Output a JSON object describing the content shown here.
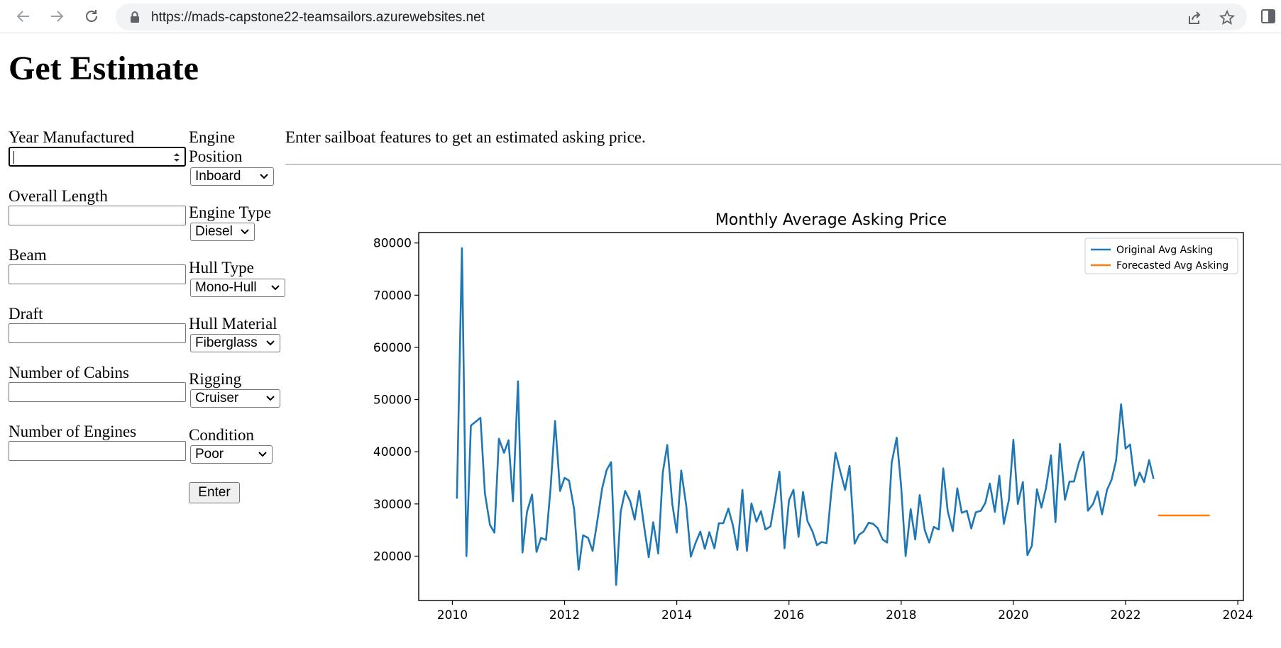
{
  "browser": {
    "url": "https://mads-capstone22-teamsailors.azurewebsites.net",
    "icons": [
      "back-icon",
      "forward-icon",
      "reload-icon",
      "lock-icon",
      "share-icon",
      "star-icon",
      "side-panel-icon"
    ]
  },
  "page": {
    "title": "Get Estimate",
    "intro": "Enter sailboat features to get an estimated asking price.",
    "submit_label": "Enter"
  },
  "form": {
    "year_label": "Year Manufactured",
    "year_value": "",
    "length_label": "Overall Length",
    "length_value": "",
    "beam_label": "Beam",
    "beam_value": "",
    "draft_label": "Draft",
    "draft_value": "",
    "cabins_label": "Number of Cabins",
    "cabins_value": "",
    "engines_label": "Number of Engines",
    "engines_value": "",
    "engine_position_label_1": "Engine",
    "engine_position_label_2": "Position",
    "engine_position_value": "Inboard",
    "engine_type_label": "Engine Type",
    "engine_type_value": "Diesel",
    "hull_type_label": "Hull Type",
    "hull_type_value": "Mono-Hull",
    "hull_material_label": "Hull Material",
    "hull_material_value": "Fiberglass",
    "rigging_label": "Rigging",
    "rigging_value": "Cruiser",
    "condition_label": "Condition",
    "condition_value": "Poor"
  },
  "chart_data": {
    "type": "line",
    "title": "Monthly Average Asking Price",
    "xlabel": "",
    "ylabel": "",
    "xlim": [
      2009.4,
      2024.1
    ],
    "ylim": [
      11500,
      82000
    ],
    "x_ticks": [
      "2010",
      "2012",
      "2014",
      "2016",
      "2018",
      "2020",
      "2022",
      "2024"
    ],
    "y_ticks": [
      "20000",
      "30000",
      "40000",
      "50000",
      "60000",
      "70000",
      "80000"
    ],
    "legend_position": "top-right",
    "grid": false,
    "series": [
      {
        "name": "Original Avg Asking",
        "color": "#1f77b4",
        "x": [
          2010.08,
          2010.17,
          2010.25,
          2010.33,
          2010.5,
          2010.58,
          2010.67,
          2010.75,
          2010.83,
          2010.92,
          2011.0,
          2011.08,
          2011.17,
          2011.25,
          2011.33,
          2011.42,
          2011.5,
          2011.58,
          2011.67,
          2011.75,
          2011.83,
          2011.92,
          2012.0,
          2012.08,
          2012.17,
          2012.25,
          2012.33,
          2012.42,
          2012.5,
          2012.58,
          2012.67,
          2012.75,
          2012.83,
          2012.92,
          2013.0,
          2013.08,
          2013.17,
          2013.25,
          2013.33,
          2013.42,
          2013.5,
          2013.58,
          2013.67,
          2013.75,
          2013.83,
          2013.92,
          2014.0,
          2014.08,
          2014.17,
          2014.25,
          2014.33,
          2014.42,
          2014.5,
          2014.58,
          2014.67,
          2014.75,
          2014.83,
          2014.92,
          2015.0,
          2015.08,
          2015.17,
          2015.25,
          2015.33,
          2015.42,
          2015.5,
          2015.58,
          2015.67,
          2015.75,
          2015.83,
          2015.92,
          2016.0,
          2016.08,
          2016.17,
          2016.25,
          2016.33,
          2016.42,
          2016.5,
          2016.58,
          2016.67,
          2016.75,
          2016.83,
          2016.92,
          2017.0,
          2017.08,
          2017.17,
          2017.25,
          2017.33,
          2017.42,
          2017.5,
          2017.58,
          2017.67,
          2017.75,
          2017.83,
          2017.92,
          2018.0,
          2018.08,
          2018.17,
          2018.25,
          2018.33,
          2018.42,
          2018.5,
          2018.58,
          2018.67,
          2018.75,
          2018.83,
          2018.92,
          2019.0,
          2019.08,
          2019.17,
          2019.25,
          2019.33,
          2019.42,
          2019.5,
          2019.58,
          2019.67,
          2019.75,
          2019.83,
          2019.92,
          2020.0,
          2020.08,
          2020.17,
          2020.25,
          2020.33,
          2020.42,
          2020.5,
          2020.58,
          2020.67,
          2020.75,
          2020.83,
          2020.92,
          2021.0,
          2021.08,
          2021.17,
          2021.25,
          2021.33,
          2021.42,
          2021.5,
          2021.58,
          2021.67,
          2021.75,
          2021.83,
          2021.92,
          2022.0,
          2022.08,
          2022.17,
          2022.25,
          2022.33,
          2022.42,
          2022.5
        ],
        "y": [
          31000,
          79000,
          20000,
          45000,
          46500,
          32000,
          26000,
          24500,
          42500,
          39800,
          42200,
          30500,
          53500,
          20700,
          28500,
          31800,
          20800,
          23500,
          23100,
          33000,
          45900,
          32500,
          35000,
          34500,
          29000,
          17400,
          24000,
          23500,
          21000,
          26500,
          33000,
          36500,
          38000,
          14500,
          28500,
          32500,
          30500,
          27000,
          32500,
          25500,
          19800,
          26500,
          20500,
          36000,
          41300,
          30000,
          24500,
          36400,
          29500,
          19900,
          22400,
          24700,
          21400,
          24600,
          21500,
          26300,
          26300,
          29100,
          25900,
          21200,
          32700,
          21000,
          30100,
          26600,
          28600,
          25100,
          25700,
          30700,
          36200,
          21500,
          30700,
          32700,
          23700,
          32300,
          26700,
          24700,
          22100,
          22700,
          22500,
          31800,
          39800,
          36000,
          32700,
          37300,
          22400,
          24100,
          24700,
          26400,
          26200,
          25400,
          23200,
          22600,
          37900,
          42700,
          33300,
          20000,
          29000,
          23200,
          31700,
          25000,
          22600,
          25600,
          25100,
          36800,
          28600,
          24800,
          33000,
          28300,
          28700,
          25300,
          28400,
          28700,
          30200,
          33900,
          28500,
          35400,
          26200,
          30800,
          42300,
          30000,
          34200,
          20200,
          22000,
          32800,
          29300,
          33000,
          39300,
          26500,
          41500,
          30800,
          34300,
          34300,
          38000,
          40000,
          28700,
          30000,
          32400,
          28000,
          32700,
          34600,
          38300,
          49100,
          40600,
          41400,
          33500,
          36000,
          34200,
          38400,
          34800
        ]
      },
      {
        "name": "Forecasted Avg Asking",
        "color": "#ff7f0e",
        "x": [
          2022.58,
          2023.5
        ],
        "y": [
          27800,
          27800
        ]
      }
    ]
  }
}
